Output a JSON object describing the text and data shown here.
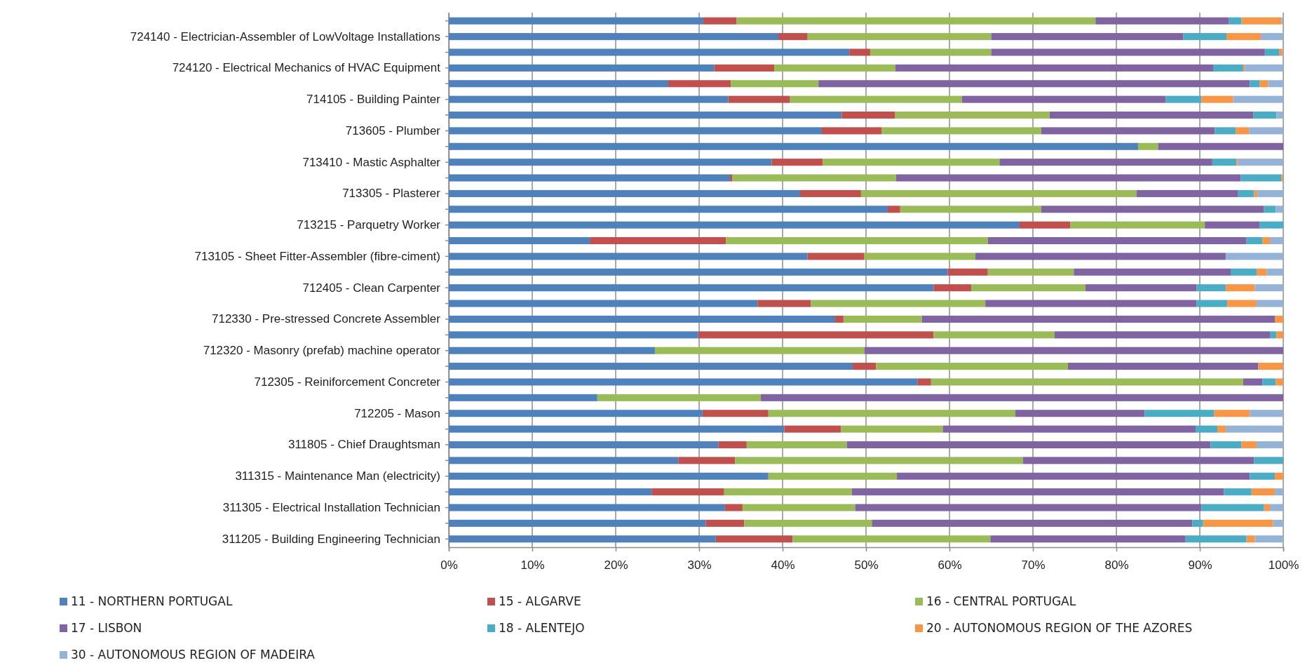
{
  "chart_data": {
    "type": "bar",
    "orientation": "horizontal",
    "stacked": true,
    "categories": [
      null,
      "724140 - Electrician-Assembler of LowVoltage Installations",
      null,
      "724120 - Electrical Mechanics of HVAC Equipment",
      null,
      "714105 - Building Painter",
      null,
      "713605 - Plumber",
      null,
      "713410 - Mastic Asphalter",
      null,
      "713305 - Plasterer",
      null,
      "713215 - Parquetry Worker",
      null,
      "713105 - Sheet Fitter-Assembler (fibre-ciment)",
      null,
      "712405 - Clean Carpenter",
      null,
      "712330 - Pre-stressed Concrete Assembler",
      null,
      "712320 - Masonry (prefab) machine operator",
      null,
      "712305 - Reiniforcement Concreter",
      null,
      "712205 - Mason",
      null,
      "311805 - Chief Draughtsman",
      null,
      "311315 - Maintenance Man (electricity)",
      null,
      "311305 - Electrical Installation Technician",
      null,
      "311205 - Building Engineering Technician"
    ],
    "series": [
      {
        "name": "11 - NORTHERN PORTUGAL",
        "color": "#4f81bd",
        "values": [
          30.5,
          39.5,
          48,
          31.8,
          26.3,
          33.5,
          47.1,
          44.7,
          82.6,
          38.7,
          33.7,
          42.1,
          52.6,
          68.4,
          16.9,
          43,
          59.8,
          58.1,
          37,
          46.3,
          29.9,
          24.7,
          48.4,
          56.2,
          17.8,
          30.4,
          40.2,
          32.3,
          27.5,
          38.3,
          24.3,
          33.1,
          30.8,
          32
        ]
      },
      {
        "name": "15 - ALGARVE",
        "color": "#c0504d",
        "values": [
          4,
          3.5,
          2.5,
          7.2,
          7.5,
          7.4,
          6.4,
          7.2,
          0,
          6.1,
          0.3,
          7.3,
          1.5,
          6.1,
          16.3,
          6.8,
          4.8,
          4.5,
          6.4,
          1,
          28.2,
          0,
          2.8,
          1.6,
          0,
          7.9,
          6.8,
          3.4,
          6.8,
          0,
          8.7,
          2.1,
          4.6,
          9.2
        ]
      },
      {
        "name": "16 - CENTRAL PORTUGAL",
        "color": "#9bbb59",
        "values": [
          43,
          22,
          14.5,
          14.5,
          10.5,
          20.6,
          18.5,
          19.1,
          2.4,
          21.2,
          19.6,
          33,
          16.9,
          16.1,
          31.4,
          13.3,
          10.3,
          13.7,
          20.9,
          9.4,
          14.5,
          25.1,
          23,
          37.4,
          19.6,
          29.6,
          12.2,
          12,
          34.5,
          15.4,
          15.3,
          13.5,
          15.3,
          23.7
        ]
      },
      {
        "name": "17 - LISBON",
        "color": "#8064a2",
        "values": [
          16,
          23,
          32.8,
          38.1,
          51.7,
          24.4,
          24.4,
          20.8,
          15,
          25.5,
          41.3,
          12.2,
          26.7,
          6.6,
          31,
          30,
          18.8,
          13.3,
          25.3,
          42.3,
          25.8,
          50.2,
          22.8,
          2.3,
          62.6,
          15.5,
          30.3,
          43.6,
          27.7,
          42.3,
          44.6,
          41.5,
          38.4,
          23.4
        ]
      },
      {
        "name": "18 - ALENTEJO",
        "color": "#4bacc6",
        "values": [
          1.5,
          5.2,
          1.7,
          3.6,
          1.2,
          4.3,
          2.8,
          2.5,
          0,
          2.9,
          4.9,
          1.9,
          1.4,
          2.8,
          1.9,
          0,
          3.1,
          3.5,
          3.7,
          0,
          0.8,
          0,
          0,
          1.6,
          0,
          8.3,
          2.6,
          3.7,
          3.5,
          3,
          3.3,
          7.5,
          1.3,
          7.3
        ]
      },
      {
        "name": "20 - AUTONOMOUS REGION OF THE AZORES",
        "color": "#f79646",
        "values": [
          4.8,
          4.1,
          0.4,
          0.2,
          1,
          3.8,
          0,
          1.6,
          0,
          0.2,
          0.2,
          0.4,
          0,
          0,
          0.9,
          0,
          1.2,
          3.5,
          3.5,
          1,
          0.8,
          0,
          3,
          0.9,
          0,
          4.3,
          1,
          1.8,
          0,
          1,
          2.8,
          0.7,
          8.4,
          1
        ]
      },
      {
        "name": "30 - AUTONOMOUS REGION OF MADEIRA",
        "color": "#95b3d7",
        "values": [
          0.2,
          2.7,
          0.1,
          4.6,
          1.8,
          6,
          0.8,
          4.1,
          0,
          5.4,
          0,
          3.1,
          0.9,
          0,
          1.6,
          6.9,
          2,
          3.4,
          3.2,
          0,
          0,
          0,
          0,
          0,
          0,
          4,
          6.9,
          3.2,
          0,
          0,
          1,
          1.6,
          1.2,
          3.4
        ]
      }
    ],
    "xlim": [
      0,
      100
    ],
    "xticks": [
      {
        "value": 0,
        "label": "0%"
      },
      {
        "value": 10,
        "label": "10%"
      },
      {
        "value": 20,
        "label": "20%"
      },
      {
        "value": 30,
        "label": "30%"
      },
      {
        "value": 40,
        "label": "40%"
      },
      {
        "value": 50,
        "label": "50%"
      },
      {
        "value": 60,
        "label": "60%"
      },
      {
        "value": 70,
        "label": "70%"
      },
      {
        "value": 80,
        "label": "80%"
      },
      {
        "value": 90,
        "label": "90%"
      },
      {
        "value": 100,
        "label": "100%"
      }
    ],
    "grid": "x",
    "legend": "bottom"
  }
}
